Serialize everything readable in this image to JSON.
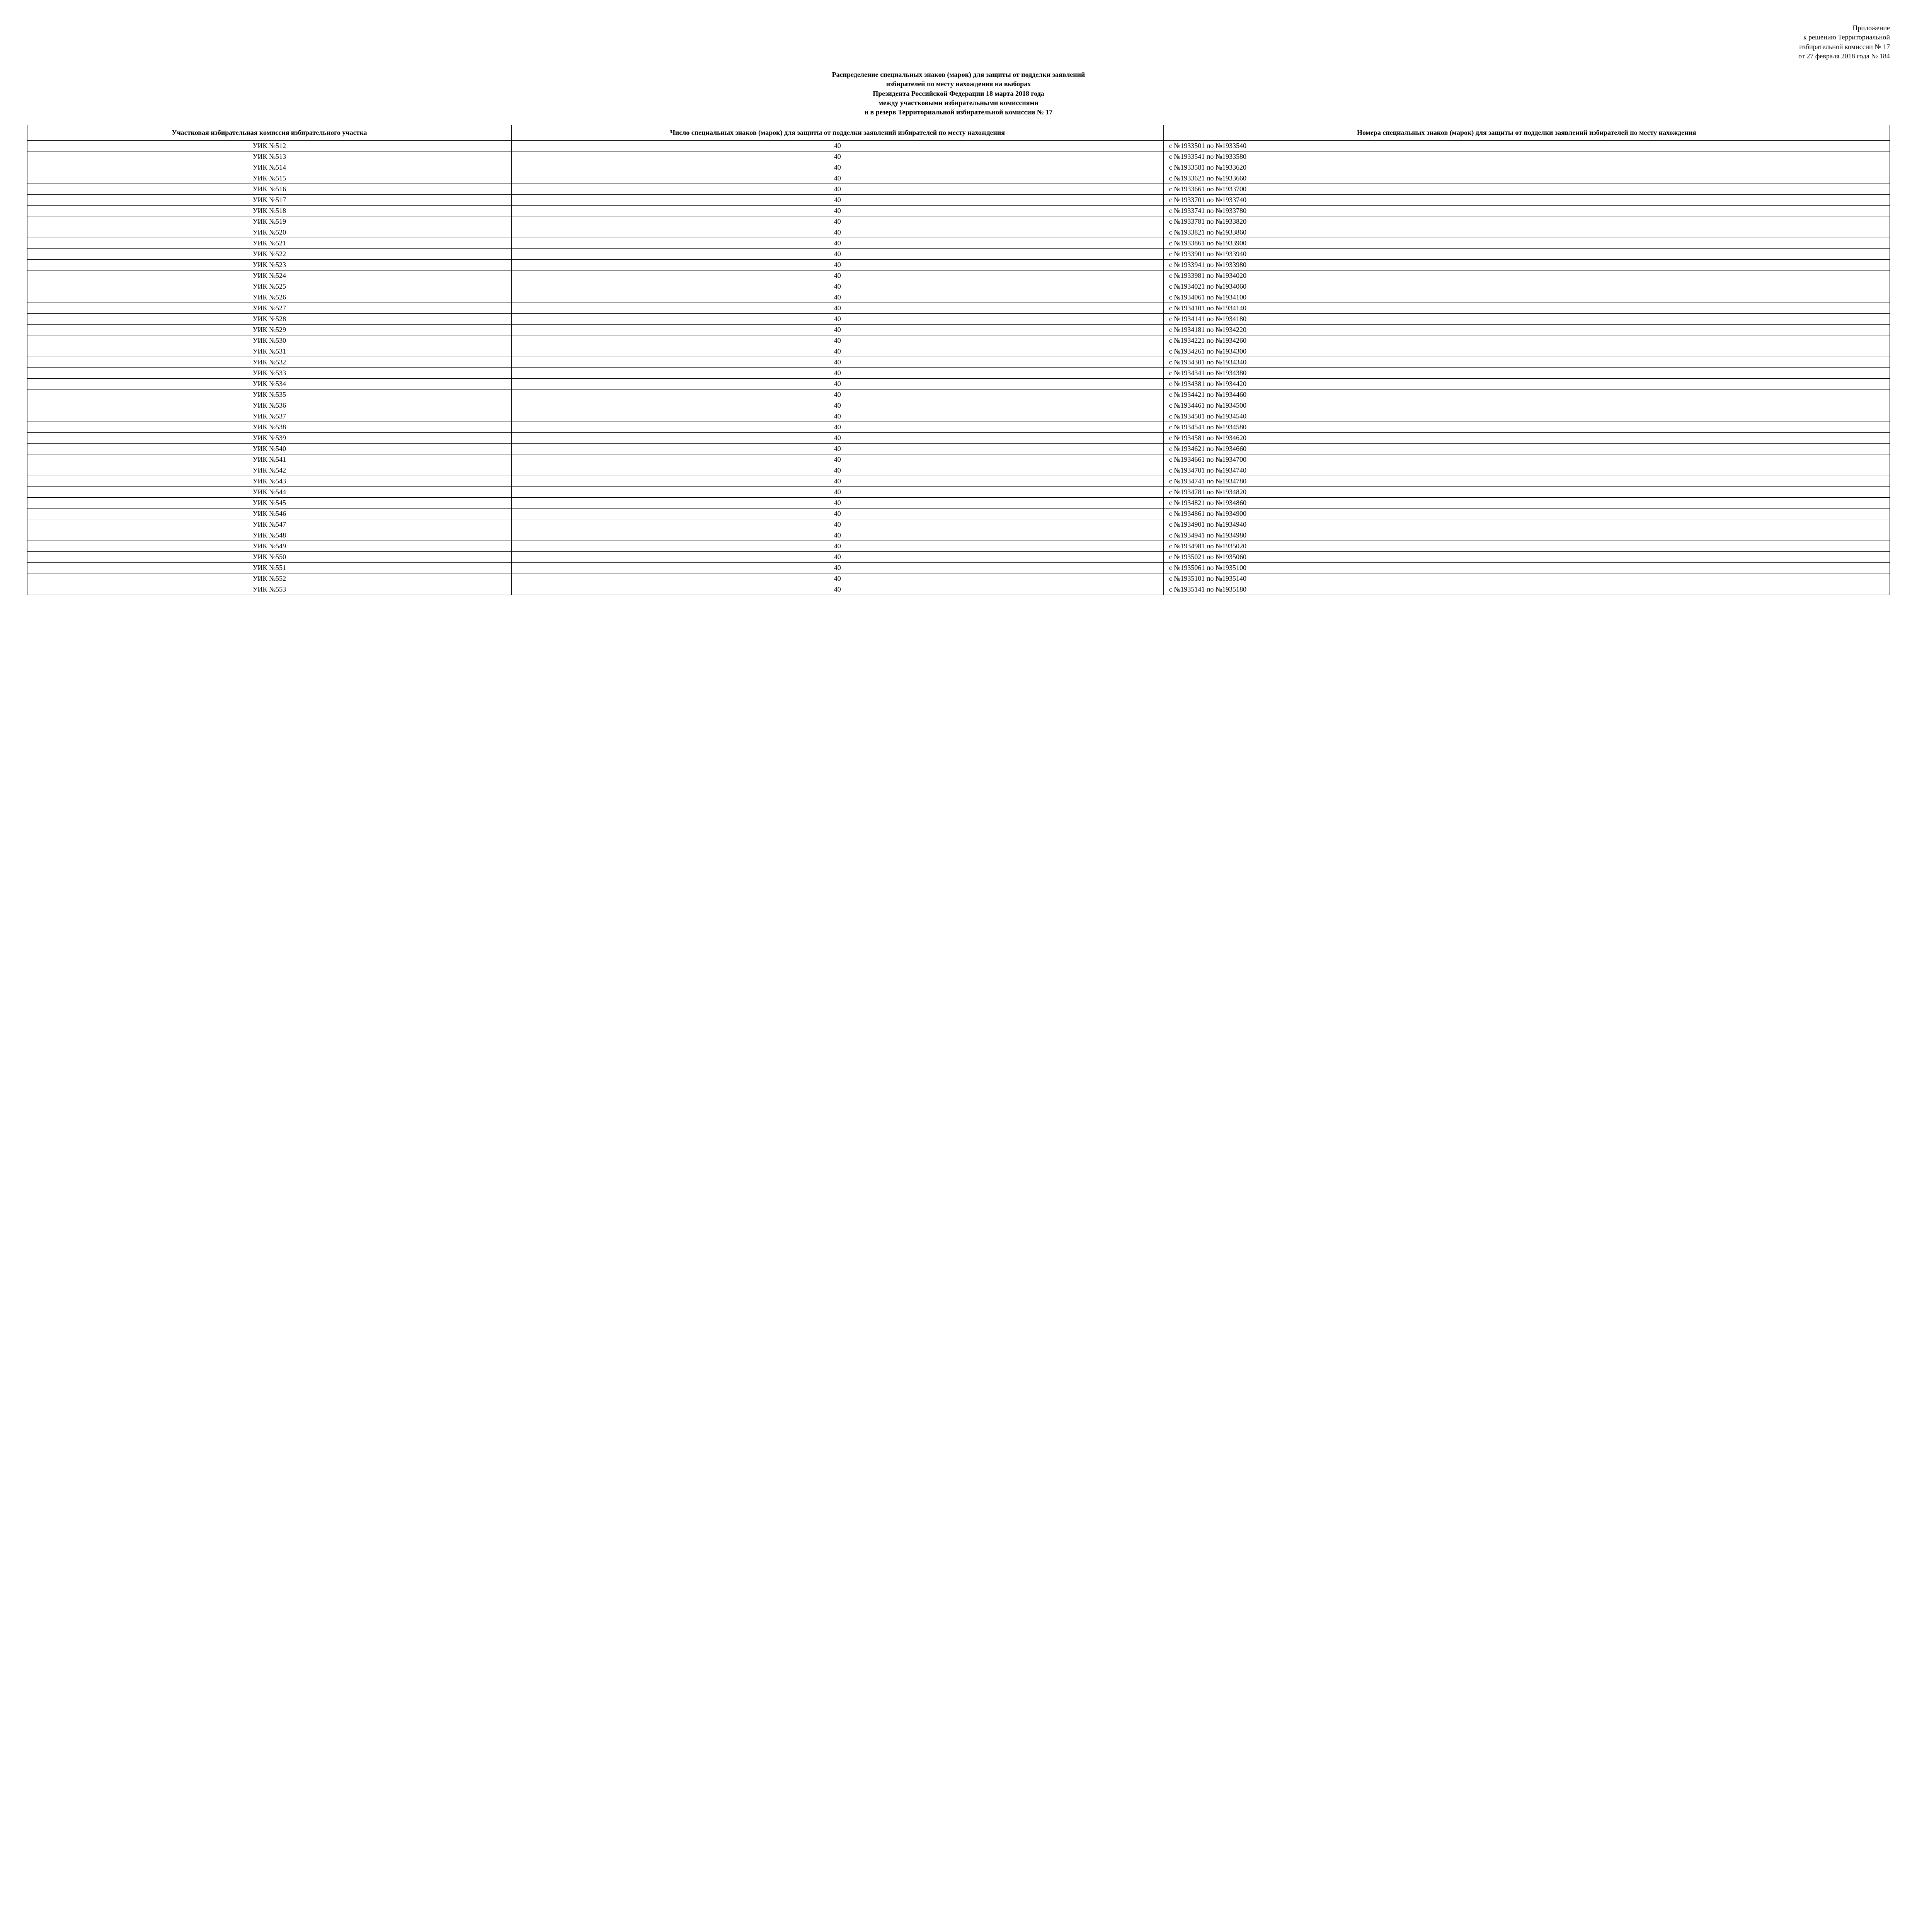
{
  "header": {
    "line1": "Приложение",
    "line2": "к решению Территориальной",
    "line3": "избирательной комиссии № 17",
    "line4": "от 27 февраля 2018 года  № 184"
  },
  "title": {
    "line1": "Распределение специальных знаков (марок) для защиты от подделки заявлений",
    "line2": "избирателей по месту нахождения на выборах",
    "line3": "Президента Российской Федерации 18 марта 2018 года",
    "line4": "между участковыми избирательными комиссиями",
    "line5": "и в резерв Территориальной избирательной комиссии № 17"
  },
  "table": {
    "columns": [
      "Участковая избирательная комиссия избирательного участка",
      "Число  специальных знаков (марок)  для защиты от подделки заявлений избирателей по месту нахождения",
      "Номера специальных знаков (марок) для защиты от подделки заявлений избирателей по месту нахождения"
    ],
    "rows": [
      {
        "uik": "УИК №512",
        "count": "40",
        "range": "с №1933501 по №1933540"
      },
      {
        "uik": "УИК №513",
        "count": "40",
        "range": "с №1933541 по №1933580"
      },
      {
        "uik": "УИК №514",
        "count": "40",
        "range": "с №1933581 по №1933620"
      },
      {
        "uik": "УИК №515",
        "count": "40",
        "range": "с №1933621 по №1933660"
      },
      {
        "uik": "УИК №516",
        "count": "40",
        "range": "с №1933661 по №1933700"
      },
      {
        "uik": "УИК №517",
        "count": "40",
        "range": "с №1933701 по №1933740"
      },
      {
        "uik": "УИК №518",
        "count": "40",
        "range": "с №1933741 по №1933780"
      },
      {
        "uik": "УИК №519",
        "count": "40",
        "range": "с №1933781 по №1933820"
      },
      {
        "uik": "УИК №520",
        "count": "40",
        "range": "с №1933821 по №1933860"
      },
      {
        "uik": "УИК №521",
        "count": "40",
        "range": "с №1933861 по №1933900"
      },
      {
        "uik": "УИК №522",
        "count": "40",
        "range": "с №1933901 по №1933940"
      },
      {
        "uik": "УИК №523",
        "count": "40",
        "range": "с №1933941 по №1933980"
      },
      {
        "uik": "УИК №524",
        "count": "40",
        "range": "с №1933981 по №1934020"
      },
      {
        "uik": "УИК №525",
        "count": "40",
        "range": "с №1934021 по №1934060"
      },
      {
        "uik": "УИК №526",
        "count": "40",
        "range": "с №1934061 по №1934100"
      },
      {
        "uik": "УИК №527",
        "count": "40",
        "range": "с №1934101 по №1934140"
      },
      {
        "uik": "УИК №528",
        "count": "40",
        "range": "с №1934141 по №1934180"
      },
      {
        "uik": "УИК №529",
        "count": "40",
        "range": "с №1934181 по №1934220"
      },
      {
        "uik": "УИК №530",
        "count": "40",
        "range": "с №1934221 по №1934260"
      },
      {
        "uik": "УИК №531",
        "count": "40",
        "range": "с №1934261 по №1934300"
      },
      {
        "uik": "УИК №532",
        "count": "40",
        "range": "с №1934301 по №1934340"
      },
      {
        "uik": "УИК №533",
        "count": "40",
        "range": "с №1934341 по №1934380"
      },
      {
        "uik": "УИК №534",
        "count": "40",
        "range": "с №1934381 по №1934420"
      },
      {
        "uik": "УИК №535",
        "count": "40",
        "range": "с №1934421 по №1934460"
      },
      {
        "uik": "УИК №536",
        "count": "40",
        "range": "с №1934461 по №1934500"
      },
      {
        "uik": "УИК №537",
        "count": "40",
        "range": "с №1934501 по №1934540"
      },
      {
        "uik": "УИК №538",
        "count": "40",
        "range": "с №1934541 по №1934580"
      },
      {
        "uik": "УИК №539",
        "count": "40",
        "range": "с №1934581 по №1934620"
      },
      {
        "uik": "УИК №540",
        "count": "40",
        "range": "с №1934621 по №1934660"
      },
      {
        "uik": "УИК №541",
        "count": "40",
        "range": "с №1934661 по №1934700"
      },
      {
        "uik": "УИК №542",
        "count": "40",
        "range": "с №1934701 по №1934740"
      },
      {
        "uik": "УИК №543",
        "count": "40",
        "range": "с №1934741 по №1934780"
      },
      {
        "uik": "УИК №544",
        "count": "40",
        "range": "с №1934781 по №1934820"
      },
      {
        "uik": "УИК №545",
        "count": "40",
        "range": "с №1934821 по №1934860"
      },
      {
        "uik": "УИК №546",
        "count": "40",
        "range": "с №1934861 по №1934900"
      },
      {
        "uik": "УИК №547",
        "count": "40",
        "range": "с №1934901 по №1934940"
      },
      {
        "uik": "УИК №548",
        "count": "40",
        "range": "с №1934941 по №1934980"
      },
      {
        "uik": "УИК №549",
        "count": "40",
        "range": "с №1934981 по №1935020"
      },
      {
        "uik": "УИК №550",
        "count": "40",
        "range": "с №1935021 по №1935060"
      },
      {
        "uik": "УИК №551",
        "count": "40",
        "range": "с №1935061 по №1935100"
      },
      {
        "uik": "УИК №552",
        "count": "40",
        "range": "с №1935101 по №1935140"
      },
      {
        "uik": "УИК №553",
        "count": "40",
        "range": "с №1935141 по №1935180"
      }
    ]
  }
}
